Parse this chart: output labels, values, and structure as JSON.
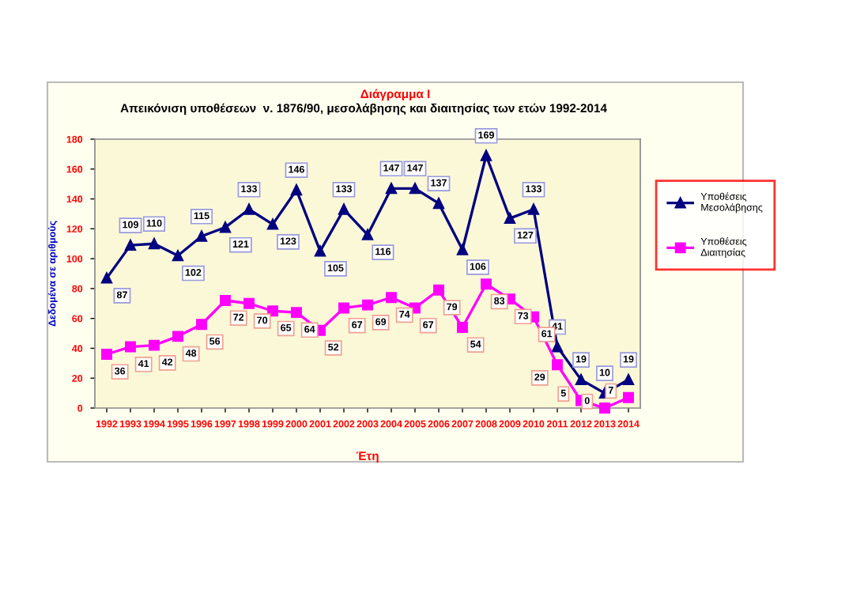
{
  "chart_data": {
    "type": "line",
    "title": "Διάγραμμα Ι",
    "subtitle": "Απεικόνιση υποθέσεων  ν. 1876/90, μεσολάβησης και διαιτησίας των ετών 1992-2014",
    "xlabel": "Έτη",
    "ylabel": "Δεδομένα σε αριθμούς",
    "categories": [
      "1992",
      "1993",
      "1994",
      "1995",
      "1996",
      "1997",
      "1998",
      "1999",
      "2000",
      "2001",
      "2002",
      "2003",
      "2004",
      "2005",
      "2006",
      "2007",
      "2008",
      "2009",
      "2010",
      "2011",
      "2012",
      "2013",
      "2014"
    ],
    "series": [
      {
        "name": "Υποθέσεις Μεσολάβησης",
        "color": "#000080",
        "marker": "triangle",
        "values": [
          87,
          109,
          110,
          102,
          115,
          121,
          133,
          123,
          146,
          105,
          133,
          116,
          147,
          147,
          137,
          106,
          169,
          127,
          133,
          41,
          19,
          10,
          19
        ]
      },
      {
        "name": "Υποθέσεις Διαιτησίας",
        "color": "#ff00ff",
        "marker": "square",
        "values": [
          36,
          41,
          42,
          48,
          56,
          72,
          70,
          65,
          64,
          52,
          67,
          69,
          74,
          67,
          79,
          54,
          83,
          73,
          61,
          29,
          5,
          0,
          7
        ]
      }
    ],
    "ylim": [
      0,
      180
    ],
    "yticks": [
      0,
      20,
      40,
      60,
      80,
      100,
      120,
      140,
      160,
      180
    ],
    "grid": false,
    "legend": "right",
    "data_labels": true
  }
}
